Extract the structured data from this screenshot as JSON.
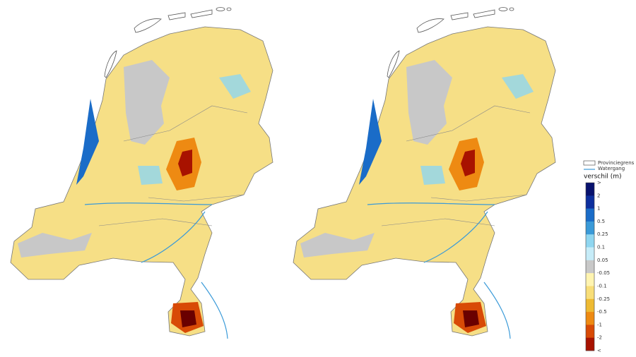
{
  "legend": {
    "items": [
      {
        "label": "Provinciegrens"
      },
      {
        "label": "Watergang"
      }
    ],
    "title": "verschil (m)",
    "labels": [
      ">",
      "2",
      "1",
      "0.5",
      "0.25",
      "0.1",
      "0.05",
      "-0.05",
      "-0.1",
      "-0.25",
      "-0.5",
      "-1",
      "-2",
      "<"
    ],
    "colors": [
      "#08126e",
      "#0d2f9e",
      "#1a6cc8",
      "#3a9ad8",
      "#8fd6f0",
      "#c6ecf8",
      "#c8c8c8",
      "#fff4b0",
      "#f8de78",
      "#eeba32",
      "#ee8a12",
      "#d84a06",
      "#a81200",
      "#6a0000"
    ]
  }
}
